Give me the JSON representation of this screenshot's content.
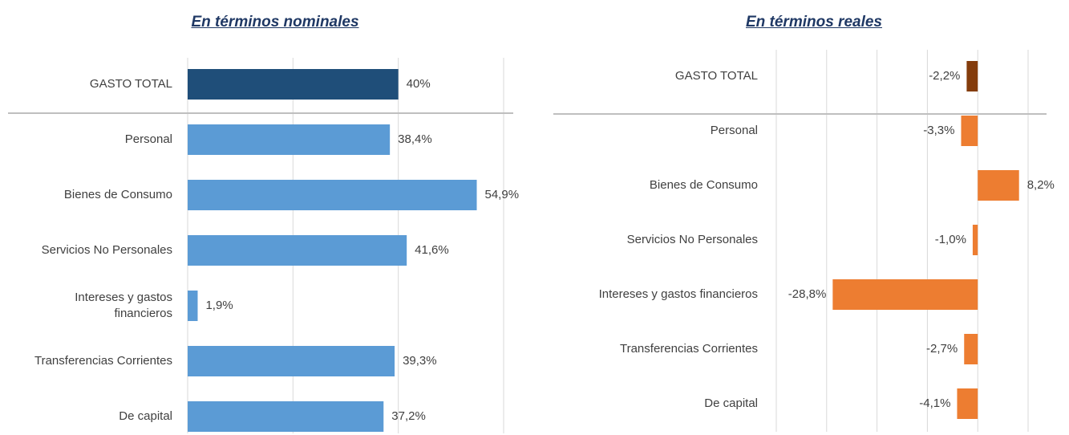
{
  "chart_data": [
    {
      "type": "bar",
      "orientation": "horizontal",
      "title": "En términos nominales",
      "categories": [
        "GASTO TOTAL",
        "Personal",
        "Bienes de Consumo",
        "Servicios No Personales",
        "Intereses y gastos financieros",
        "Transferencias Corrientes",
        "De capital"
      ],
      "values": [
        40,
        38.4,
        54.9,
        41.6,
        1.9,
        39.3,
        37.2
      ],
      "value_labels": [
        "40%",
        "38,4%",
        "54,9%",
        "41,6%",
        "1,9%",
        "39,3%",
        "37,2%"
      ],
      "colors": [
        "#1f4e79",
        "#5b9bd5",
        "#5b9bd5",
        "#5b9bd5",
        "#5b9bd5",
        "#5b9bd5",
        "#5b9bd5"
      ],
      "xlim": [
        0,
        60
      ],
      "xticks": [
        0,
        20,
        40,
        60
      ],
      "grid": true
    },
    {
      "type": "bar",
      "orientation": "horizontal",
      "title": "En términos reales",
      "categories": [
        "GASTO TOTAL",
        "Personal",
        "Bienes de Consumo",
        "Servicios No Personales",
        "Intereses y gastos financieros",
        "Transferencias Corrientes",
        "De capital"
      ],
      "values": [
        -2.2,
        -3.3,
        8.2,
        -1.0,
        -28.8,
        -2.7,
        -4.1
      ],
      "value_labels": [
        "-2,2%",
        "-3,3%",
        "8,2%",
        "-1,0%",
        "-28,8%",
        "-2,7%",
        "-4,1%"
      ],
      "colors": [
        "#843c0c",
        "#ed7d31",
        "#ed7d31",
        "#ed7d31",
        "#ed7d31",
        "#ed7d31",
        "#ed7d31"
      ],
      "xlim": [
        -40,
        10
      ],
      "xticks": [
        -40,
        -30,
        -20,
        -10,
        0,
        10
      ],
      "grid": true
    }
  ]
}
